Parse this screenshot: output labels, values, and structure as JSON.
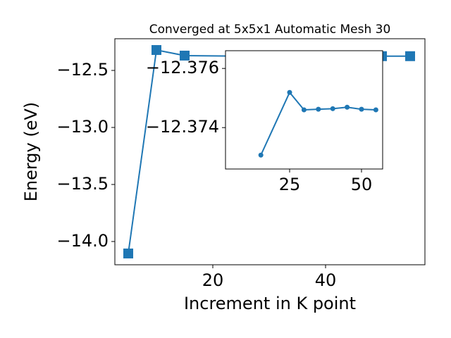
{
  "chart_data": [
    {
      "type": "line",
      "title": "Converged at 5x5x1 Automatic Mesh 30",
      "x_label": "Increment in K point",
      "y_label": "Energy (eV)",
      "x": [
        5,
        10,
        15,
        25,
        30,
        35,
        40,
        45,
        50,
        55
      ],
      "series": [
        {
          "name": "Energy",
          "color": "#1f77b4",
          "values": [
            -14.105,
            -12.321,
            -12.37,
            -12.375,
            -12.375,
            -12.375,
            -12.375,
            -12.375,
            -12.375,
            -12.375
          ]
        }
      ],
      "xlim": [
        2.625,
        57.625
      ],
      "xticks": [
        20,
        40
      ],
      "ylim": [
        -14.204,
        -12.222
      ],
      "yticks": [
        {
          "value": -14.0,
          "label": "−14.0"
        },
        {
          "value": -13.5,
          "label": "−13.5"
        },
        {
          "value": -13.0,
          "label": "−13.0"
        },
        {
          "value": -12.5,
          "label": "−12.5"
        }
      ],
      "marker": "square"
    },
    {
      "type": "line",
      "x": [
        15,
        25,
        30,
        35,
        40,
        45,
        50,
        55
      ],
      "series": [
        {
          "name": "Energy",
          "color": "#1f77b4",
          "values": [
            -12.37307,
            -12.37519,
            -12.3746,
            -12.37462,
            -12.37464,
            -12.37469,
            -12.37462,
            -12.3746
          ]
        }
      ],
      "xlim": [
        2.7,
        57.35
      ],
      "xticks": [
        25,
        50
      ],
      "ylim": [
        -12.3726,
        -12.3766
      ],
      "yticks": [
        {
          "value": -12.374,
          "label": "−12.374"
        },
        {
          "value": -12.376,
          "label": "−12.376"
        }
      ],
      "marker": "circle"
    }
  ]
}
